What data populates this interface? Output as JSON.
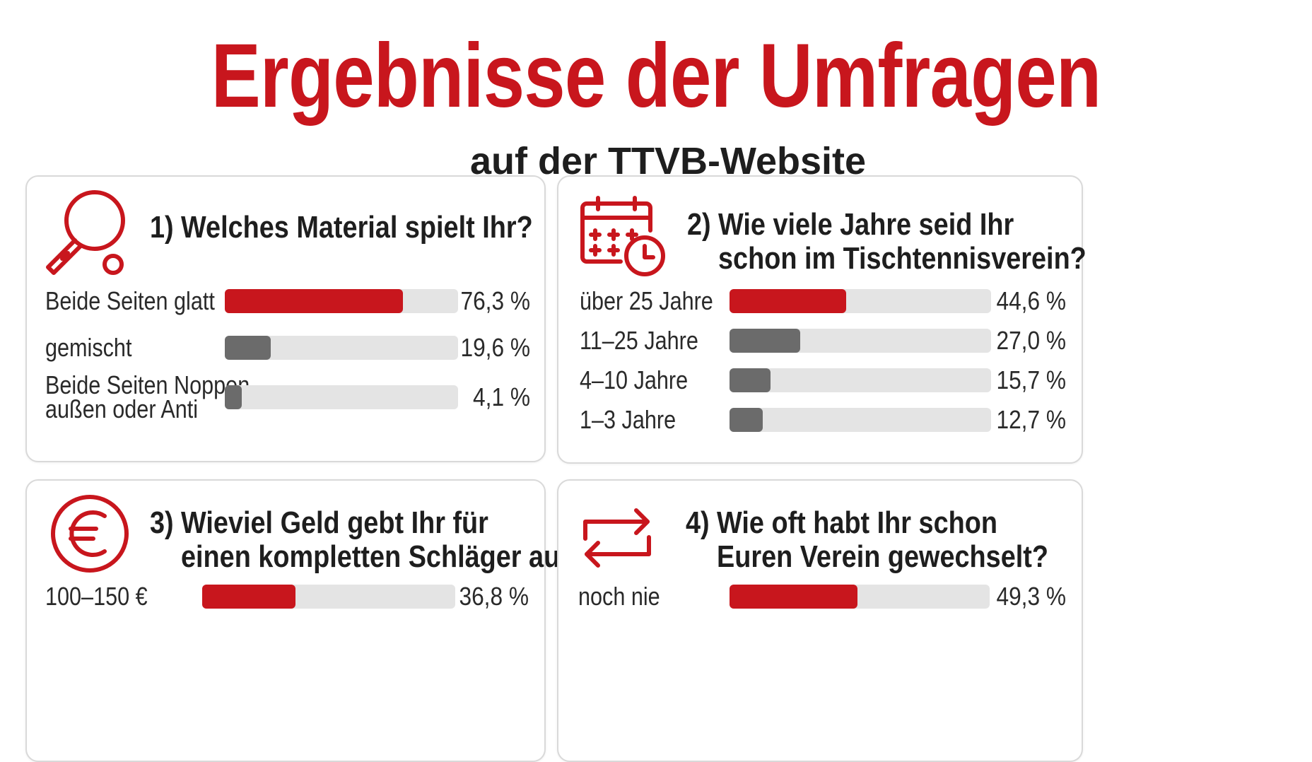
{
  "header": {
    "title": "Ergebnisse der Umfragen",
    "subtitle": "auf der TTVB-Website"
  },
  "colors": {
    "accent": "#c8161d",
    "bar_secondary": "#6b6b6b",
    "track": "#e4e4e4",
    "card_border": "#d9d9d9"
  },
  "chart_data": [
    {
      "type": "bar",
      "icon": "ping-pong-paddle-icon",
      "number": "1)",
      "question": "Welches Material spielt Ihr?",
      "question_lines": [
        "Welches Material spielt Ihr?"
      ],
      "categories": [
        "Beide Seiten glatt",
        "gemischt",
        "Beide Seiten Noppen außen oder Anti"
      ],
      "category_lines": [
        [
          "Beide Seiten glatt"
        ],
        [
          "gemischt"
        ],
        [
          "Beide Seiten Noppen",
          "außen oder Anti"
        ]
      ],
      "values": [
        76.3,
        19.6,
        4.1
      ],
      "value_labels": [
        "76,3 %",
        "19,6 %",
        "4,1 %"
      ],
      "ylim": [
        0,
        100
      ]
    },
    {
      "type": "bar",
      "icon": "calendar-clock-icon",
      "number": "2)",
      "question": "Wie viele Jahre seid Ihr schon im Tischtennisverein?",
      "question_lines": [
        "Wie viele Jahre seid Ihr",
        "schon im Tischtennisverein?"
      ],
      "categories": [
        "über 25 Jahre",
        "11–25 Jahre",
        "4–10 Jahre",
        "1–3 Jahre"
      ],
      "category_lines": [
        [
          "über 25 Jahre"
        ],
        [
          "11–25 Jahre"
        ],
        [
          "4–10 Jahre"
        ],
        [
          "1–3 Jahre"
        ]
      ],
      "values": [
        44.6,
        27.0,
        15.7,
        12.7
      ],
      "value_labels": [
        "44,6 %",
        "27,0 %",
        "15,7 %",
        "12,7 %"
      ],
      "ylim": [
        0,
        100
      ]
    },
    {
      "type": "bar",
      "icon": "euro-icon",
      "number": "3)",
      "question": "Wieviel Geld gebt Ihr für einen kompletten Schläger aus?",
      "question_lines": [
        "Wieviel Geld gebt Ihr für",
        "einen kompletten Schläger aus?"
      ],
      "categories": [
        "100–150 €"
      ],
      "category_lines": [
        [
          "100–150 €"
        ]
      ],
      "values": [
        36.8
      ],
      "value_labels": [
        "36,8 %"
      ],
      "ylim": [
        0,
        100
      ]
    },
    {
      "type": "bar",
      "icon": "swap-arrows-icon",
      "number": "4)",
      "question": "Wie oft habt Ihr schon Euren Verein gewechselt?",
      "question_lines": [
        "Wie oft habt Ihr schon",
        "Euren Verein gewechselt?"
      ],
      "categories": [
        "noch nie"
      ],
      "category_lines": [
        [
          "noch nie"
        ]
      ],
      "values": [
        49.3
      ],
      "value_labels": [
        "49,3 %"
      ],
      "ylim": [
        0,
        100
      ]
    }
  ]
}
